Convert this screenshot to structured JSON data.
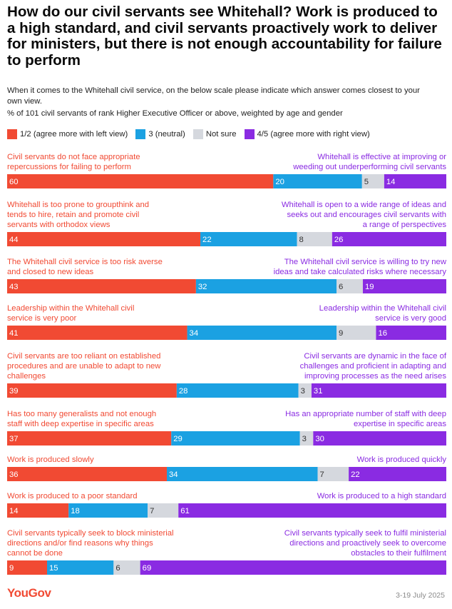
{
  "title": "How do our civil servants see Whitehall? Work is produced to a high standard, and civil servants proactively work to deliver for ministers, but there is not enough accountability for failure to perform",
  "subtitle": "When it comes to the Whitehall civil service, on the below scale please indicate which answer comes closest to your own view.",
  "note": "% of 101 civil servants of rank Higher Executive Officer or above, weighted by age and gender",
  "colors": {
    "left": "#f14a33",
    "neutral": "#1ba1e2",
    "not_sure": "#d5d8de",
    "right": "#8a2be2"
  },
  "chart_data": {
    "type": "bar",
    "orientation": "horizontal",
    "stacked": true,
    "series": [
      {
        "name": "1/2 (agree more with left view)",
        "key": "left"
      },
      {
        "name": "3 (neutral)",
        "key": "neutral"
      },
      {
        "name": "Not sure",
        "key": "not_sure"
      },
      {
        "name": "4/5 (agree more with right view)",
        "key": "right"
      }
    ],
    "xlim": [
      0,
      100
    ],
    "rows": [
      {
        "left_label": [
          "Civil servants do not face appropriate",
          "repercussions for failing to perform"
        ],
        "right_label": [
          "Whitehall is effective at improving or",
          "weeding out underperforming civil servants"
        ],
        "values": [
          60,
          20,
          5,
          14
        ]
      },
      {
        "left_label": [
          "Whitehall is too prone to groupthink and",
          "tends to hire, retain and promote civil",
          "servants with orthodox views"
        ],
        "right_label": [
          "Whitehall is open to a wide range of ideas and",
          "seeks out and encourages civil servants with",
          "a range of perspectives"
        ],
        "values": [
          44,
          22,
          8,
          26
        ]
      },
      {
        "left_label": [
          "The Whitehall civil service is too risk averse",
          "and closed to new ideas"
        ],
        "right_label": [
          "The Whitehall civil service is willing to try new",
          "ideas and take calculated risks where necessary"
        ],
        "values": [
          43,
          32,
          6,
          19
        ]
      },
      {
        "left_label": [
          "Leadership within the Whitehall civil",
          "service is very poor"
        ],
        "right_label": [
          "Leadership within the Whitehall civil",
          "service is very good"
        ],
        "values": [
          41,
          34,
          9,
          16
        ]
      },
      {
        "left_label": [
          "Civil servants are too reliant on established",
          "procedures and are unable to adapt to new",
          "challenges"
        ],
        "right_label": [
          "Civil servants are dynamic in the face of",
          "challenges and proficient in adapting and",
          "improving processes as the need arises"
        ],
        "values": [
          39,
          28,
          3,
          31
        ]
      },
      {
        "left_label": [
          "Has too many generalists and not enough",
          "staff with deep expertise in specific areas"
        ],
        "right_label": [
          "Has an appropriate number of staff with deep",
          "expertise in specific areas"
        ],
        "values": [
          37,
          29,
          3,
          30
        ]
      },
      {
        "left_label": [
          "Work is produced slowly"
        ],
        "right_label": [
          "Work is produced quickly"
        ],
        "values": [
          36,
          34,
          7,
          22
        ]
      },
      {
        "left_label": [
          "Work is produced to a poor standard"
        ],
        "right_label": [
          "Work is produced to a high standard"
        ],
        "values": [
          14,
          18,
          7,
          61
        ]
      },
      {
        "left_label": [
          "Civil servants typically seek to block ministerial",
          "directions and/or find reasons why things",
          "cannot be done"
        ],
        "right_label": [
          "Civil servants typically seek to fulfil ministerial",
          "directions and proactively seek to overcome",
          "obstacles to their fulfilment"
        ],
        "values": [
          9,
          15,
          6,
          69
        ]
      }
    ]
  },
  "footer": {
    "brand": "YouGov",
    "date": "3-19 July 2025"
  }
}
